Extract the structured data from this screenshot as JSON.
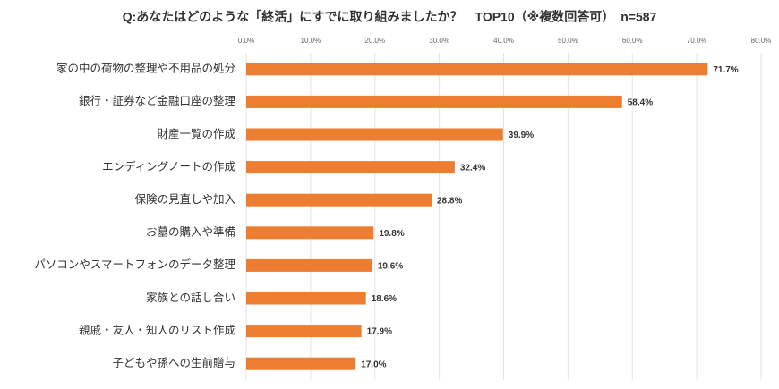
{
  "chart_data": {
    "type": "bar",
    "orientation": "horizontal",
    "title": "Q:あなたはどのような「終活」にすでに取り組みましたか？　TOP10（※複数回答可）　n=587",
    "categories": [
      "家の中の荷物の整理や不用品の処分",
      "銀行・証券など金融口座の整理",
      "財産一覧の作成",
      "エンディングノートの作成",
      "保険の見直しや加入",
      "お墓の購入や準備",
      "パソコンやスマートフォンのデータ整理",
      "家族との話し合い",
      "親戚・友人・知人のリスト作成",
      "子どもや孫への生前贈与"
    ],
    "values": [
      71.7,
      58.4,
      39.9,
      32.4,
      28.8,
      19.8,
      19.6,
      18.6,
      17.9,
      17.0
    ],
    "value_labels": [
      "71.7%",
      "58.4%",
      "39.9%",
      "32.4%",
      "28.8%",
      "19.8%",
      "19.6%",
      "18.6%",
      "17.9%",
      "17.0%"
    ],
    "color": "#ED7D31",
    "xlim": [
      0,
      80
    ],
    "xticks": [
      {
        "value": 0,
        "label": "0.0%"
      },
      {
        "value": 10,
        "label": "10.0%"
      },
      {
        "value": 20,
        "label": "20.0%"
      },
      {
        "value": 30,
        "label": "30.0%"
      },
      {
        "value": 40,
        "label": "40.0%"
      },
      {
        "value": 50,
        "label": "50.0%"
      },
      {
        "value": 60,
        "label": "60.0%"
      },
      {
        "value": 70,
        "label": "70.0%"
      },
      {
        "value": 80,
        "label": "80.0%"
      }
    ],
    "grid": true
  }
}
